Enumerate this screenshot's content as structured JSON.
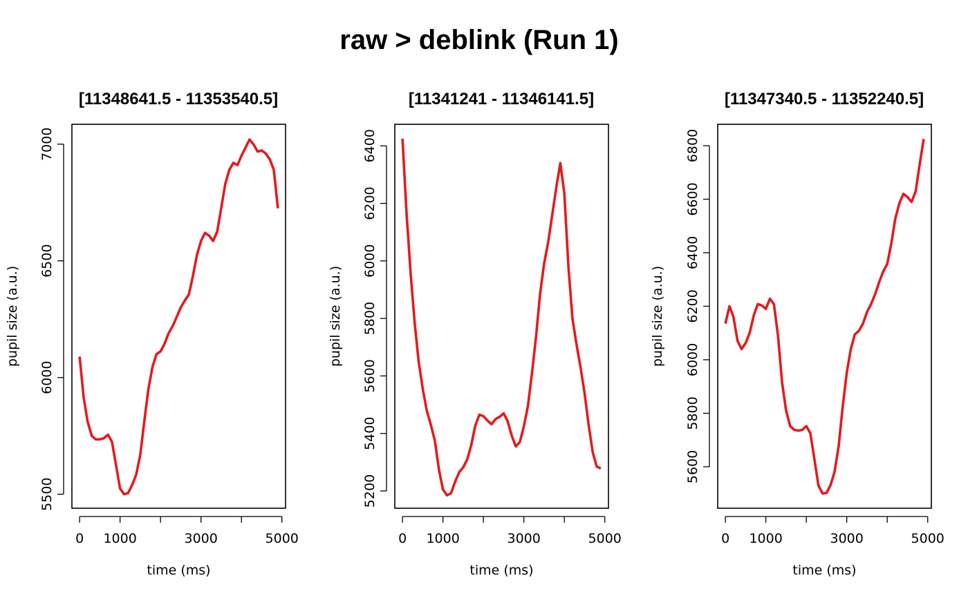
{
  "figure": {
    "title": "raw > deblink (Run 1)"
  },
  "chart_data": [
    {
      "type": "line",
      "title": "[11348641.5 - 11353540.5]",
      "xlabel": "time (ms)",
      "ylabel": "pupil size (a.u.)",
      "xlim": [
        -190,
        5090
      ],
      "ylim": [
        5440,
        7085
      ],
      "x_tick_values": [
        0,
        1000,
        2000,
        3000,
        4000,
        5000
      ],
      "x_tick_labels": [
        "0",
        "1000",
        "",
        "3000",
        "",
        "5000"
      ],
      "y_tick_values": [
        5500,
        6000,
        6500,
        7000
      ],
      "y_tick_labels": [
        "5500",
        "6000",
        "6500",
        "7000"
      ],
      "grid": false,
      "series": [
        {
          "color": "#e41a1c",
          "x": [
            0,
            100,
            200,
            300,
            400,
            500,
            600,
            700,
            800,
            900,
            1000,
            1100,
            1200,
            1300,
            1400,
            1500,
            1600,
            1700,
            1800,
            1900,
            2000,
            2100,
            2200,
            2300,
            2400,
            2500,
            2600,
            2700,
            2800,
            2900,
            3000,
            3100,
            3200,
            3300,
            3400,
            3500,
            3600,
            3700,
            3800,
            3900,
            4000,
            4100,
            4200,
            4300,
            4400,
            4500,
            4600,
            4700,
            4800,
            4900
          ],
          "y": [
            6090,
            5915,
            5810,
            5750,
            5735,
            5735,
            5740,
            5755,
            5725,
            5625,
            5525,
            5500,
            5505,
            5540,
            5585,
            5670,
            5815,
            5950,
            6045,
            6100,
            6112,
            6145,
            6190,
            6220,
            6260,
            6300,
            6330,
            6355,
            6435,
            6525,
            6585,
            6620,
            6608,
            6585,
            6625,
            6725,
            6830,
            6890,
            6920,
            6910,
            6950,
            6985,
            7020,
            6998,
            6968,
            6973,
            6960,
            6935,
            6890,
            6725
          ]
        }
      ]
    },
    {
      "type": "line",
      "title": "[11341241 - 11346141.5]",
      "xlabel": "time (ms)",
      "ylabel": "pupil size (a.u.)",
      "xlim": [
        -190,
        5090
      ],
      "ylim": [
        5140,
        6475
      ],
      "x_tick_values": [
        0,
        1000,
        2000,
        3000,
        4000,
        5000
      ],
      "x_tick_labels": [
        "0",
        "1000",
        "",
        "3000",
        "",
        "5000"
      ],
      "y_tick_values": [
        5200,
        5400,
        5600,
        5800,
        6000,
        6200,
        6400
      ],
      "y_tick_labels": [
        "5200",
        "5400",
        "5600",
        "5800",
        "6000",
        "6200",
        "6400"
      ],
      "grid": false,
      "series": [
        {
          "color": "#e41a1c",
          "x": [
            0,
            100,
            200,
            300,
            400,
            500,
            600,
            700,
            800,
            900,
            1000,
            1100,
            1200,
            1300,
            1400,
            1500,
            1600,
            1700,
            1800,
            1900,
            2000,
            2100,
            2200,
            2300,
            2400,
            2500,
            2600,
            2700,
            2800,
            2900,
            3000,
            3100,
            3200,
            3300,
            3400,
            3500,
            3600,
            3700,
            3800,
            3900,
            4000,
            4100,
            4200,
            4300,
            4400,
            4500,
            4600,
            4700,
            4800,
            4900
          ],
          "y": [
            6425,
            6165,
            5960,
            5785,
            5650,
            5555,
            5480,
            5430,
            5375,
            5275,
            5205,
            5185,
            5192,
            5232,
            5265,
            5282,
            5310,
            5360,
            5428,
            5465,
            5460,
            5445,
            5432,
            5450,
            5458,
            5470,
            5442,
            5392,
            5355,
            5370,
            5425,
            5495,
            5610,
            5735,
            5885,
            5990,
            6065,
            6160,
            6255,
            6340,
            6235,
            5980,
            5800,
            5710,
            5630,
            5540,
            5430,
            5335,
            5285,
            5278
          ]
        }
      ]
    },
    {
      "type": "line",
      "title": "[11347340.5 - 11352240.5]",
      "xlabel": "time (ms)",
      "ylabel": "pupil size (a.u.)",
      "xlim": [
        -190,
        5090
      ],
      "ylim": [
        5445,
        6880
      ],
      "x_tick_values": [
        0,
        1000,
        2000,
        3000,
        4000,
        5000
      ],
      "x_tick_labels": [
        "0",
        "1000",
        "",
        "3000",
        "",
        "5000"
      ],
      "y_tick_values": [
        5600,
        5800,
        6000,
        6200,
        6400,
        6600,
        6800
      ],
      "y_tick_labels": [
        "5600",
        "5800",
        "6000",
        "6200",
        "6400",
        "6600",
        "6800"
      ],
      "grid": false,
      "series": [
        {
          "color": "#e41a1c",
          "x": [
            0,
            100,
            200,
            300,
            400,
            500,
            600,
            700,
            800,
            900,
            1000,
            1100,
            1200,
            1300,
            1400,
            1500,
            1600,
            1700,
            1800,
            1900,
            2000,
            2100,
            2200,
            2300,
            2400,
            2500,
            2600,
            2700,
            2800,
            2900,
            3000,
            3100,
            3200,
            3300,
            3400,
            3500,
            3600,
            3700,
            3800,
            3900,
            4000,
            4100,
            4200,
            4300,
            4400,
            4500,
            4600,
            4700,
            4800,
            4900
          ],
          "y": [
            6135,
            6200,
            6160,
            6070,
            6040,
            6062,
            6100,
            6165,
            6208,
            6203,
            6190,
            6228,
            6208,
            6090,
            5915,
            5810,
            5752,
            5738,
            5735,
            5738,
            5752,
            5725,
            5628,
            5530,
            5500,
            5502,
            5532,
            5582,
            5678,
            5825,
            5952,
            6040,
            6095,
            6108,
            6135,
            6178,
            6208,
            6245,
            6290,
            6330,
            6358,
            6435,
            6528,
            6585,
            6620,
            6608,
            6590,
            6628,
            6728,
            6825
          ]
        }
      ]
    }
  ]
}
